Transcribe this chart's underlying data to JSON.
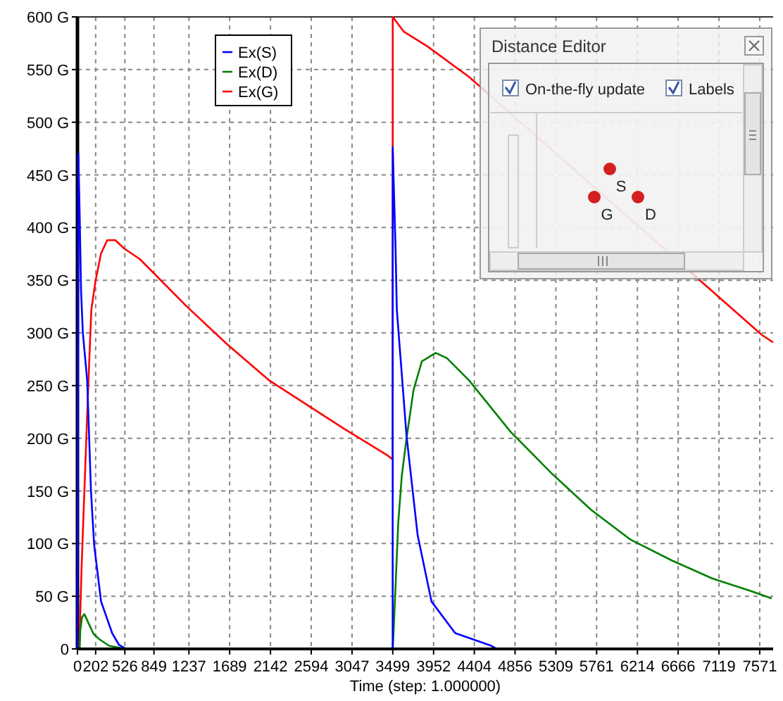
{
  "chart_data": {
    "type": "line",
    "xlabel": "Time (step: 1.000000)",
    "xlim": [
      0,
      7720
    ],
    "xticks": [
      0,
      202,
      526,
      849,
      1237,
      1689,
      2142,
      2594,
      3047,
      3499,
      3952,
      4404,
      4856,
      5309,
      5761,
      6214,
      6666,
      7119,
      7571
    ],
    "ylim": [
      0,
      600
    ],
    "yticks": [
      0,
      {
        "value": 50,
        "label": "50 G"
      },
      {
        "value": 100,
        "label": "100 G"
      },
      {
        "value": 150,
        "label": "150 G"
      },
      {
        "value": 200,
        "label": "200 G"
      },
      {
        "value": 250,
        "label": "250 G"
      },
      {
        "value": 300,
        "label": "300 G"
      },
      {
        "value": 350,
        "label": "350 G"
      },
      {
        "value": 400,
        "label": "400 G"
      },
      {
        "value": 450,
        "label": "450 G"
      },
      {
        "value": 500,
        "label": "500 G"
      },
      {
        "value": 550,
        "label": "550 G"
      },
      {
        "value": 600,
        "label": "600 G"
      }
    ],
    "grid": true,
    "legend": "top left",
    "marker": "none",
    "line_style": "solid",
    "annotations": [
      "Distance Editor",
      "On-the-fly update",
      "Labels",
      "S",
      "G",
      "D"
    ],
    "series": [
      {
        "name": "Ex(S)",
        "color": "#0000ff",
        "x": [
          0,
          10,
          25,
          40,
          60,
          108,
          150,
          185,
          262,
          385,
          460,
          540,
          3498,
          3499,
          3510,
          3530,
          3544,
          3652,
          3775,
          3929,
          4191,
          4592,
          4653,
          7720
        ],
        "values": [
          0,
          470,
          410,
          340,
          300,
          255,
          150,
          99,
          45,
          15,
          4,
          0,
          0,
          476,
          440,
          380,
          322,
          202,
          108,
          45,
          15,
          3,
          0,
          0
        ]
      },
      {
        "name": "Ex(D)",
        "color": "#008000",
        "x": [
          0,
          25,
          31,
          50,
          77,
          120,
          180,
          246,
          350,
          478,
          600,
          3499,
          3510,
          3530,
          3560,
          3600,
          3652,
          3730,
          3822,
          3975,
          4100,
          4345,
          4807,
          5270,
          5701,
          6133,
          6595,
          7042,
          7473,
          7704
        ],
        "values": [
          0,
          0,
          17,
          30,
          33,
          25,
          14,
          9,
          3,
          1,
          0,
          0,
          20,
          60,
          120,
          165,
          200,
          246,
          273,
          281,
          276,
          255,
          206,
          166,
          132,
          104,
          84,
          67,
          55,
          48
        ]
      },
      {
        "name": "Ex(G)",
        "color": "#ff0000",
        "x": [
          0,
          20,
          46,
          120,
          154,
          200,
          260,
          330,
          420,
          520,
          693,
          1202,
          1664,
          2126,
          2958,
          3436,
          3498,
          3499,
          3621,
          3883,
          4345,
          7596,
          7720
        ],
        "values": [
          0,
          0,
          78,
          250,
          322,
          349,
          375,
          388,
          388,
          380,
          370,
          326,
          289,
          255,
          209,
          184,
          180,
          600,
          586,
          572,
          543,
          298,
          291
        ]
      }
    ]
  }
}
